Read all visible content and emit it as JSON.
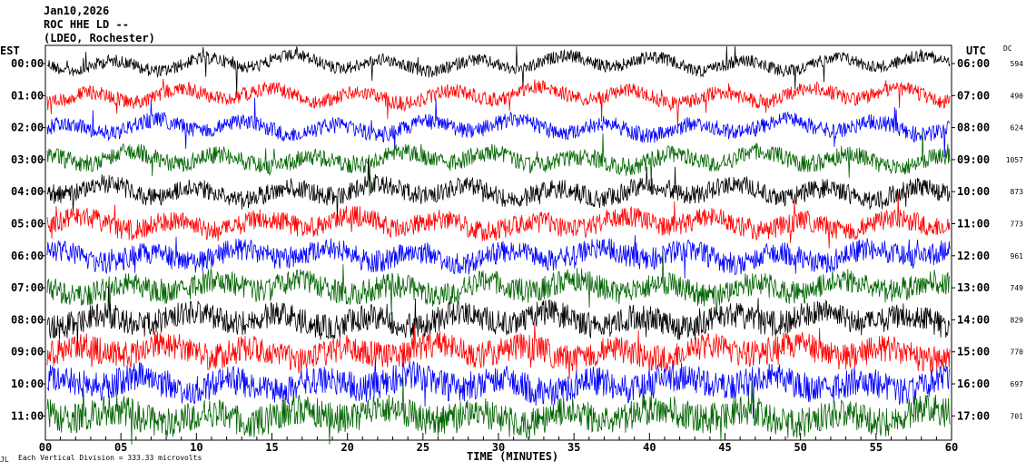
{
  "header": {
    "date": "Jan10,2026",
    "station": "ROC HHE LD --",
    "network": "(LDEO, Rochester)"
  },
  "chart_data": {
    "type": "line",
    "title": "Jan10,2026 ROC HHE LD -- (LDEO, Rochester)",
    "xlabel": "TIME (MINUTES)",
    "left_axis_title": "EST",
    "right_axis_title": "UTC",
    "dc_title": "DC",
    "xlim": [
      0,
      60
    ],
    "x_ticks": [
      "00",
      "05",
      "10",
      "15",
      "20",
      "25",
      "30",
      "35",
      "40",
      "45",
      "50",
      "55",
      "60"
    ],
    "rows": [
      {
        "est": "00:00",
        "utc": "06:00",
        "dc": "594",
        "color": "#000000"
      },
      {
        "est": "01:00",
        "utc": "07:00",
        "dc": "490",
        "color": "#ff0000"
      },
      {
        "est": "02:00",
        "utc": "08:00",
        "dc": "624",
        "color": "#0000ff"
      },
      {
        "est": "03:00",
        "utc": "09:00",
        "dc": "1057",
        "color": "#006400"
      },
      {
        "est": "04:00",
        "utc": "10:00",
        "dc": "873",
        "color": "#000000"
      },
      {
        "est": "05:00",
        "utc": "11:00",
        "dc": "773",
        "color": "#ff0000"
      },
      {
        "est": "06:00",
        "utc": "12:00",
        "dc": "961",
        "color": "#0000ff"
      },
      {
        "est": "07:00",
        "utc": "13:00",
        "dc": "749",
        "color": "#006400"
      },
      {
        "est": "08:00",
        "utc": "14:00",
        "dc": "829",
        "color": "#000000"
      },
      {
        "est": "09:00",
        "utc": "15:00",
        "dc": "770",
        "color": "#ff0000"
      },
      {
        "est": "10:00",
        "utc": "16:00",
        "dc": "697",
        "color": "#0000ff"
      },
      {
        "est": "11:00",
        "utc": "17:00",
        "dc": "701",
        "color": "#006400"
      }
    ],
    "footer_note": "Each Vertical Division =  333.33 microvolts",
    "footer_mark": "JL"
  }
}
